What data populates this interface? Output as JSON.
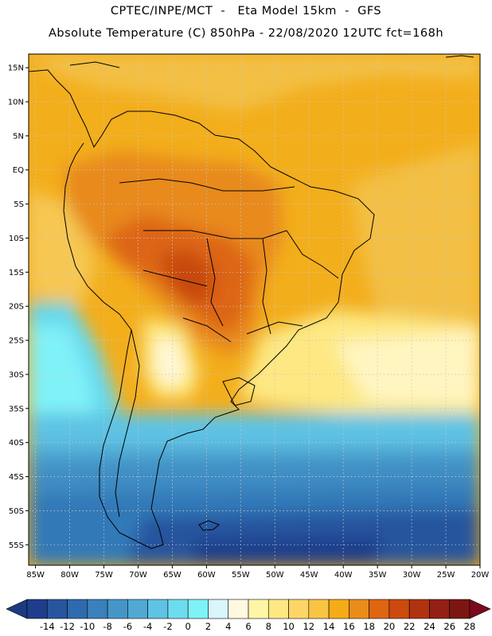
{
  "header": {
    "line1": "CPTEC/INPE/MCT  -   Eta Model 15km  -  GFS",
    "line2": "Absolute Temperature (C) 850hPa - 22/08/2020 12UTC fct=168h"
  },
  "map": {
    "variable": "Absolute Temperature (C) 850hPa",
    "lon_range": [
      -86,
      -20
    ],
    "lat_range": [
      -58,
      17
    ],
    "lon_ticks": [
      "85W",
      "80W",
      "75W",
      "70W",
      "65W",
      "60W",
      "55W",
      "50W",
      "45W",
      "40W",
      "35W",
      "30W",
      "25W",
      "20W"
    ],
    "lat_ticks": [
      "15N",
      "10N",
      "5N",
      "EQ",
      "5S",
      "10S",
      "15S",
      "20S",
      "25S",
      "30S",
      "35S",
      "40S",
      "45S",
      "50S",
      "55S"
    ],
    "grid": "dotted"
  },
  "colorbar": {
    "labels": [
      "-14",
      "-12",
      "-10",
      "-8",
      "-6",
      "-4",
      "-2",
      "0",
      "2",
      "4",
      "6",
      "8",
      "10",
      "12",
      "14",
      "16",
      "18",
      "20",
      "22",
      "24",
      "26",
      "28"
    ],
    "colors": [
      "#1f3d8c",
      "#27559e",
      "#2f6aae",
      "#3a80bc",
      "#4596c8",
      "#50a9d3",
      "#5ec3e4",
      "#6ddcef",
      "#7ff2f8",
      "#d8f6fb",
      "#fff9e1",
      "#fff5a6",
      "#fde883",
      "#fcd667",
      "#f8c444",
      "#f5ac18",
      "#ea8c19",
      "#df6512",
      "#cc4a0d",
      "#b03310",
      "#922014",
      "#7b1710"
    ],
    "low_arrow_color": "#1c3a82",
    "high_arrow_color": "#7a0a1c"
  }
}
